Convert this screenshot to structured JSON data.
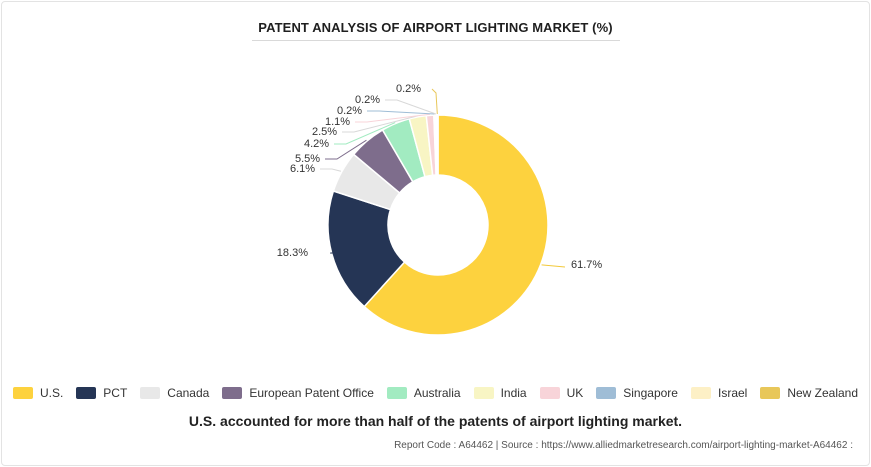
{
  "title": "PATENT ANALYSIS OF AIRPORT LIGHTING MARKET (%)",
  "caption": "U.S. accounted for more than half of the patents of airport lighting market.",
  "source_text": "Report Code : A64462  |  Source : https://www.alliedmarketresearch.com/airport-lighting-market-A64462 :",
  "chart_data": {
    "type": "pie",
    "style": "donut",
    "legend_position": "bottom",
    "categories": [
      "U.S.",
      "PCT",
      "Canada",
      "European Patent Office",
      "Australia",
      "India",
      "UK",
      "Singapore",
      "Israel",
      "New Zealand"
    ],
    "values": [
      61.7,
      18.3,
      6.1,
      5.5,
      4.2,
      2.5,
      1.1,
      0.2,
      0.2,
      0.2
    ],
    "labels": [
      "61.7%",
      "18.3%",
      "6.1%",
      "5.5%",
      "4.2%",
      "2.5%",
      "1.1%",
      "0.2%",
      "0.2%",
      "0.2%"
    ],
    "colors": [
      "#fdd23e",
      "#253555",
      "#e8e8e8",
      "#7e6d8c",
      "#a2ebc1",
      "#f8f5c4",
      "#f8d4d9",
      "#9fbdd6",
      "#fdf0c6",
      "#e8c75a"
    ]
  }
}
